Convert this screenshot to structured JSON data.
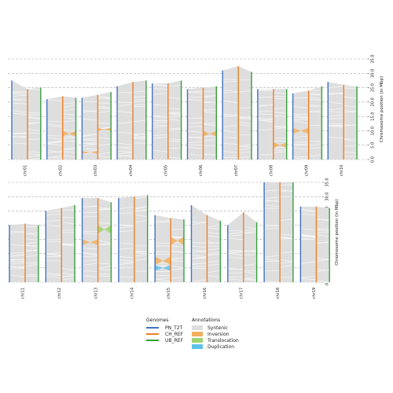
{
  "chart_data": [
    {
      "type": "other",
      "ylabel": "Chromosome position (in Mbp)",
      "ylim": [
        0,
        35
      ],
      "yticks": [
        "0.0",
        "5.0",
        "10.0",
        "15.0",
        "20.0",
        "25.0",
        "30.0",
        "35.0"
      ],
      "chromosomes": [
        {
          "name": "chr01",
          "lengths": [
            27.5,
            24.5,
            25.0
          ]
        },
        {
          "name": "chr02",
          "lengths": [
            21.0,
            22.0,
            21.5
          ]
        },
        {
          "name": "chr03",
          "lengths": [
            21.5,
            22.5,
            23.5
          ]
        },
        {
          "name": "chr04",
          "lengths": [
            25.5,
            27.0,
            27.5
          ]
        },
        {
          "name": "chr05",
          "lengths": [
            26.5,
            26.5,
            27.5
          ]
        },
        {
          "name": "chr06",
          "lengths": [
            24.5,
            25.0,
            25.5
          ]
        },
        {
          "name": "chr07",
          "lengths": [
            31.0,
            32.5,
            30.5
          ]
        },
        {
          "name": "chr08",
          "lengths": [
            24.5,
            24.5,
            24.5
          ]
        },
        {
          "name": "chr09",
          "lengths": [
            23.0,
            24.0,
            25.5
          ]
        },
        {
          "name": "chr10",
          "lengths": [
            27.0,
            26.0,
            25.5
          ]
        }
      ],
      "annotations": [
        {
          "chr": "chr02",
          "type": "Inversion",
          "range": [
            8,
            10
          ]
        },
        {
          "chr": "chr03",
          "type": "Inversion",
          "range": [
            2,
            3
          ]
        },
        {
          "chr": "chr03",
          "type": "Inversion",
          "range": [
            10,
            11
          ]
        },
        {
          "chr": "chr06",
          "type": "Inversion",
          "range": [
            8,
            10
          ]
        },
        {
          "chr": "chr08",
          "type": "Inversion",
          "range": [
            4,
            6
          ]
        },
        {
          "chr": "chr09",
          "type": "Inversion",
          "range": [
            9,
            11
          ]
        }
      ]
    },
    {
      "type": "other",
      "ylabel": "Chromosome position (in Mbp)",
      "ylim": [
        0,
        35
      ],
      "yticks": [
        "0.0",
        "5.0",
        "10.0",
        "15.0",
        "20.0",
        "25.0",
        "30.0",
        "35.0"
      ],
      "chromosomes": [
        {
          "name": "chr11",
          "lengths": [
            20.0,
            20.5,
            20.0
          ]
        },
        {
          "name": "chr12",
          "lengths": [
            25.0,
            26.0,
            27.0
          ]
        },
        {
          "name": "chr13",
          "lengths": [
            29.5,
            29.5,
            28.0
          ]
        },
        {
          "name": "chr14",
          "lengths": [
            29.5,
            30.0,
            30.5
          ]
        },
        {
          "name": "chr15",
          "lengths": [
            23.5,
            22.5,
            22.0
          ]
        },
        {
          "name": "chr16",
          "lengths": [
            27.0,
            23.5,
            21.5
          ]
        },
        {
          "name": "chr17",
          "lengths": [
            20.0,
            24.5,
            21.0
          ]
        },
        {
          "name": "chr18",
          "lengths": [
            35.0,
            35.0,
            35.0
          ]
        },
        {
          "name": "chr19",
          "lengths": [
            26.5,
            26.5,
            26.0
          ]
        }
      ],
      "annotations": [
        {
          "chr": "chr13",
          "type": "Inversion",
          "range": [
            13,
            15
          ]
        },
        {
          "chr": "chr15",
          "type": "Inversion",
          "range": [
            6,
            9
          ]
        },
        {
          "chr": "chr15",
          "type": "Inversion",
          "range": [
            13,
            16
          ]
        },
        {
          "chr": "chr15",
          "type": "Duplication",
          "range": [
            4,
            6
          ]
        },
        {
          "chr": "chr13",
          "type": "Translocation",
          "range": [
            17,
            20
          ]
        }
      ]
    }
  ],
  "legend": {
    "genomes_title": "Genomes",
    "genomes": [
      {
        "label": "PN_T2T",
        "color": "#3f72c0"
      },
      {
        "label": "CH_REF",
        "color": "#f07e24"
      },
      {
        "label": "UB_REF",
        "color": "#36a03a"
      }
    ],
    "annotations_title": "Annotations",
    "annotations": [
      {
        "label": "Syntenic",
        "color": "#dddddd"
      },
      {
        "label": "Inversion",
        "color": "#f2b05e"
      },
      {
        "label": "Translocation",
        "color": "#9fd36e"
      },
      {
        "label": "Duplication",
        "color": "#5fc1ea"
      }
    ]
  },
  "colors": {
    "syntenic": "#dedede",
    "syntenic_line": "#f7f7f7",
    "grid": "#aaaaaa"
  }
}
